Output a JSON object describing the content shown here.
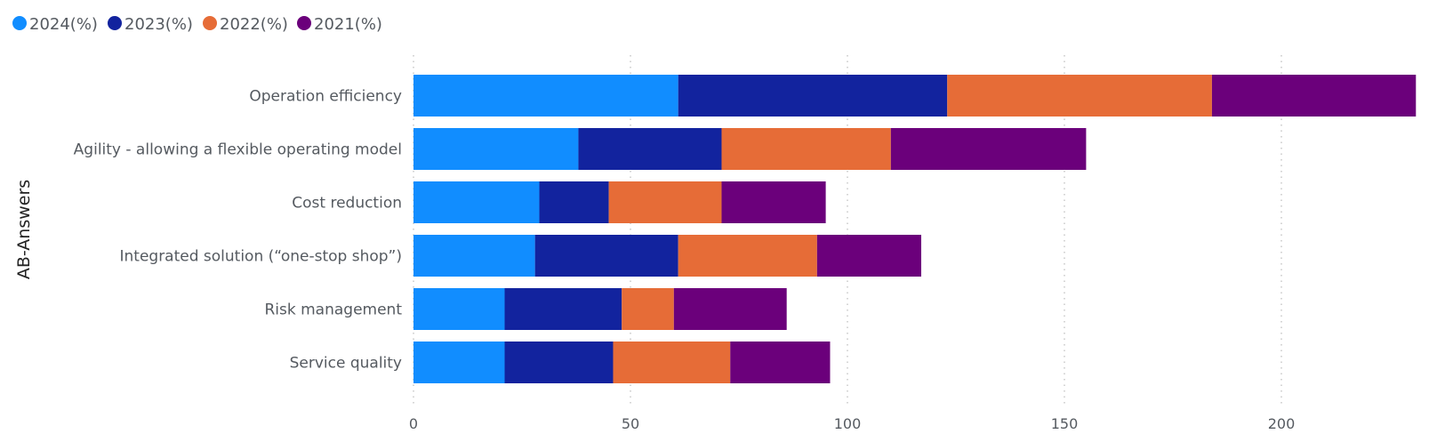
{
  "chart_data": {
    "type": "bar",
    "orientation": "horizontal",
    "stacked": true,
    "title": "",
    "ylabel": "AB-Answers",
    "xlabel": "",
    "xlim": [
      0,
      230
    ],
    "xticks": [
      0,
      50,
      100,
      150,
      200
    ],
    "grid": true,
    "legend_position": "top-left",
    "categories": [
      "Operation efficiency",
      "Agility - allowing a flexible operating model",
      "Cost reduction",
      "Integrated solution (“one-stop shop”)",
      "Risk management",
      "Service quality"
    ],
    "series": [
      {
        "name": "2024(%)",
        "color": "#118DFF",
        "values": [
          61,
          38,
          29,
          28,
          21,
          21
        ]
      },
      {
        "name": "2023(%)",
        "color": "#12239E",
        "values": [
          62,
          33,
          16,
          33,
          27,
          25
        ]
      },
      {
        "name": "2022(%)",
        "color": "#E66C37",
        "values": [
          61,
          39,
          26,
          32,
          12,
          27
        ]
      },
      {
        "name": "2021(%)",
        "color": "#6B007B",
        "values": [
          47,
          45,
          24,
          24,
          26,
          23
        ]
      }
    ]
  }
}
